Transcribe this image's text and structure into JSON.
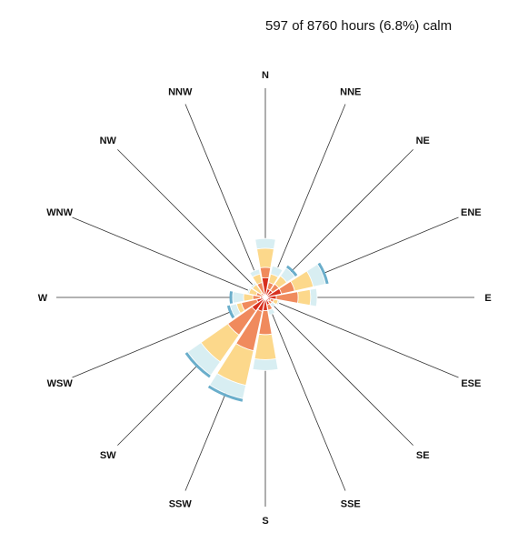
{
  "calm_note": "597 of 8760 hours (6.8%) calm",
  "colors": {
    "band_1": "#d7301f",
    "band_2": "#f08a5d",
    "band_3": "#fcd88b",
    "band_4": "#d8eef2",
    "arc": "#6aaecb",
    "spoke": "#333333"
  },
  "chart_data": {
    "type": "wind-rose",
    "calm_hours": 597,
    "total_hours": 8760,
    "calm_percent": 6.8,
    "directions": [
      "N",
      "NNE",
      "NE",
      "ENE",
      "E",
      "ESE",
      "SE",
      "SSE",
      "S",
      "SSW",
      "SW",
      "WSW",
      "W",
      "WNW",
      "NW",
      "NNW"
    ],
    "bands": [
      {
        "values": [
          3.6,
          1.6,
          1.6,
          3.0,
          2.0,
          1.0,
          0.8,
          1.4,
          2.4,
          2.6,
          3.0,
          1.6,
          0.9,
          0.5,
          0.4,
          0.6
        ]
      },
      {
        "values": [
          5.5,
          2.8,
          3.0,
          5.5,
          6.0,
          1.6,
          1.5,
          2.4,
          6.8,
          10.0,
          8.4,
          4.5,
          2.3,
          1.7,
          1.0,
          2.8
        ]
      },
      {
        "values": [
          9.0,
          4.4,
          4.8,
          9.0,
          8.3,
          2.4,
          1.5,
          2.4,
          11.4,
          16.5,
          14.4,
          5.4,
          4.0,
          3.1,
          2.9,
          4.4
        ]
      },
      {
        "values": [
          10.8,
          5.9,
          6.6,
          11.3,
          9.5,
          2.7,
          2.2,
          3.3,
          13.4,
          19.0,
          17.4,
          6.6,
          6.0,
          3.4,
          3.3,
          5.3
        ]
      }
    ],
    "outline_arcs": [
      false,
      false,
      true,
      true,
      false,
      false,
      false,
      false,
      false,
      true,
      true,
      true,
      true,
      false,
      false,
      false
    ]
  }
}
